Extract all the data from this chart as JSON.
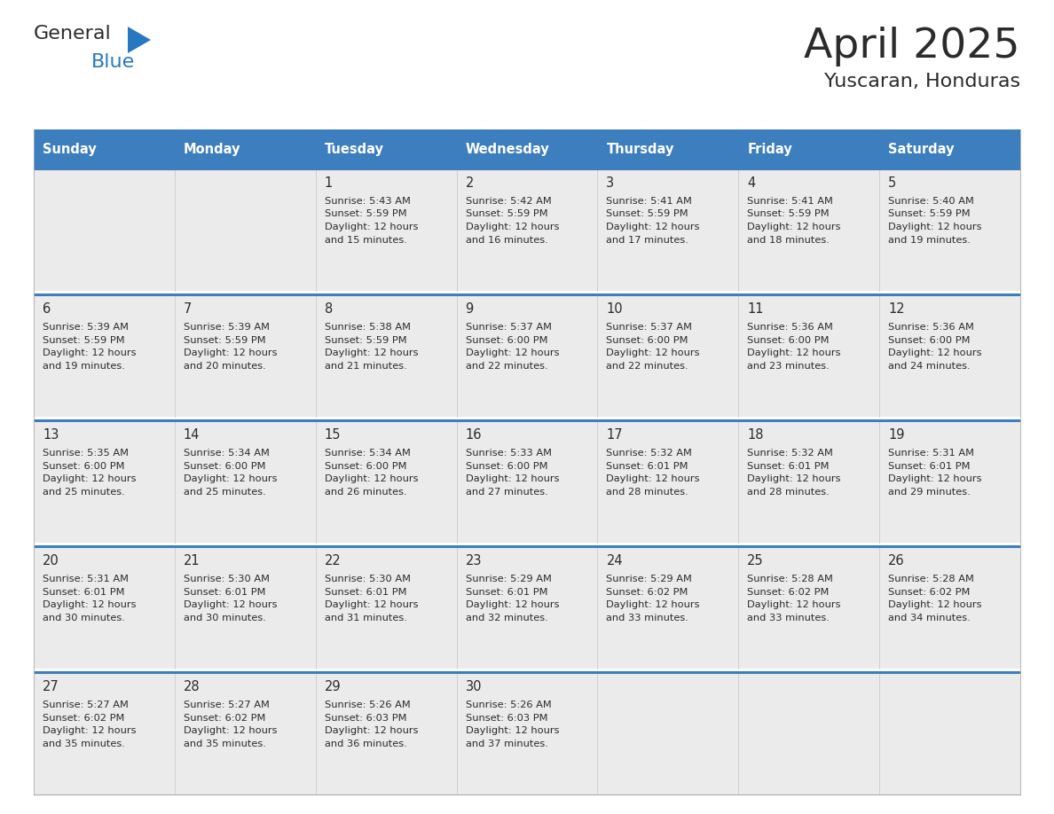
{
  "title": "April 2025",
  "subtitle": "Yuscaran, Honduras",
  "days_of_week": [
    "Sunday",
    "Monday",
    "Tuesday",
    "Wednesday",
    "Thursday",
    "Friday",
    "Saturday"
  ],
  "header_bg": "#3d7ebf",
  "header_text": "#ffffff",
  "cell_bg": "#ebebeb",
  "row_divider_color": "#3d7ebf",
  "title_color": "#2b2b2b",
  "subtitle_color": "#2b2b2b",
  "text_color": "#2b2b2b",
  "calendar_data": [
    [
      {
        "day": null,
        "sunrise": null,
        "sunset": null,
        "daylight_hours": null,
        "daylight_minutes": null
      },
      {
        "day": null,
        "sunrise": null,
        "sunset": null,
        "daylight_hours": null,
        "daylight_minutes": null
      },
      {
        "day": 1,
        "sunrise": "5:43 AM",
        "sunset": "5:59 PM",
        "daylight_hours": 12,
        "daylight_minutes": 15
      },
      {
        "day": 2,
        "sunrise": "5:42 AM",
        "sunset": "5:59 PM",
        "daylight_hours": 12,
        "daylight_minutes": 16
      },
      {
        "day": 3,
        "sunrise": "5:41 AM",
        "sunset": "5:59 PM",
        "daylight_hours": 12,
        "daylight_minutes": 17
      },
      {
        "day": 4,
        "sunrise": "5:41 AM",
        "sunset": "5:59 PM",
        "daylight_hours": 12,
        "daylight_minutes": 18
      },
      {
        "day": 5,
        "sunrise": "5:40 AM",
        "sunset": "5:59 PM",
        "daylight_hours": 12,
        "daylight_minutes": 19
      }
    ],
    [
      {
        "day": 6,
        "sunrise": "5:39 AM",
        "sunset": "5:59 PM",
        "daylight_hours": 12,
        "daylight_minutes": 19
      },
      {
        "day": 7,
        "sunrise": "5:39 AM",
        "sunset": "5:59 PM",
        "daylight_hours": 12,
        "daylight_minutes": 20
      },
      {
        "day": 8,
        "sunrise": "5:38 AM",
        "sunset": "5:59 PM",
        "daylight_hours": 12,
        "daylight_minutes": 21
      },
      {
        "day": 9,
        "sunrise": "5:37 AM",
        "sunset": "6:00 PM",
        "daylight_hours": 12,
        "daylight_minutes": 22
      },
      {
        "day": 10,
        "sunrise": "5:37 AM",
        "sunset": "6:00 PM",
        "daylight_hours": 12,
        "daylight_minutes": 22
      },
      {
        "day": 11,
        "sunrise": "5:36 AM",
        "sunset": "6:00 PM",
        "daylight_hours": 12,
        "daylight_minutes": 23
      },
      {
        "day": 12,
        "sunrise": "5:36 AM",
        "sunset": "6:00 PM",
        "daylight_hours": 12,
        "daylight_minutes": 24
      }
    ],
    [
      {
        "day": 13,
        "sunrise": "5:35 AM",
        "sunset": "6:00 PM",
        "daylight_hours": 12,
        "daylight_minutes": 25
      },
      {
        "day": 14,
        "sunrise": "5:34 AM",
        "sunset": "6:00 PM",
        "daylight_hours": 12,
        "daylight_minutes": 25
      },
      {
        "day": 15,
        "sunrise": "5:34 AM",
        "sunset": "6:00 PM",
        "daylight_hours": 12,
        "daylight_minutes": 26
      },
      {
        "day": 16,
        "sunrise": "5:33 AM",
        "sunset": "6:00 PM",
        "daylight_hours": 12,
        "daylight_minutes": 27
      },
      {
        "day": 17,
        "sunrise": "5:32 AM",
        "sunset": "6:01 PM",
        "daylight_hours": 12,
        "daylight_minutes": 28
      },
      {
        "day": 18,
        "sunrise": "5:32 AM",
        "sunset": "6:01 PM",
        "daylight_hours": 12,
        "daylight_minutes": 28
      },
      {
        "day": 19,
        "sunrise": "5:31 AM",
        "sunset": "6:01 PM",
        "daylight_hours": 12,
        "daylight_minutes": 29
      }
    ],
    [
      {
        "day": 20,
        "sunrise": "5:31 AM",
        "sunset": "6:01 PM",
        "daylight_hours": 12,
        "daylight_minutes": 30
      },
      {
        "day": 21,
        "sunrise": "5:30 AM",
        "sunset": "6:01 PM",
        "daylight_hours": 12,
        "daylight_minutes": 30
      },
      {
        "day": 22,
        "sunrise": "5:30 AM",
        "sunset": "6:01 PM",
        "daylight_hours": 12,
        "daylight_minutes": 31
      },
      {
        "day": 23,
        "sunrise": "5:29 AM",
        "sunset": "6:01 PM",
        "daylight_hours": 12,
        "daylight_minutes": 32
      },
      {
        "day": 24,
        "sunrise": "5:29 AM",
        "sunset": "6:02 PM",
        "daylight_hours": 12,
        "daylight_minutes": 33
      },
      {
        "day": 25,
        "sunrise": "5:28 AM",
        "sunset": "6:02 PM",
        "daylight_hours": 12,
        "daylight_minutes": 33
      },
      {
        "day": 26,
        "sunrise": "5:28 AM",
        "sunset": "6:02 PM",
        "daylight_hours": 12,
        "daylight_minutes": 34
      }
    ],
    [
      {
        "day": 27,
        "sunrise": "5:27 AM",
        "sunset": "6:02 PM",
        "daylight_hours": 12,
        "daylight_minutes": 35
      },
      {
        "day": 28,
        "sunrise": "5:27 AM",
        "sunset": "6:02 PM",
        "daylight_hours": 12,
        "daylight_minutes": 35
      },
      {
        "day": 29,
        "sunrise": "5:26 AM",
        "sunset": "6:03 PM",
        "daylight_hours": 12,
        "daylight_minutes": 36
      },
      {
        "day": 30,
        "sunrise": "5:26 AM",
        "sunset": "6:03 PM",
        "daylight_hours": 12,
        "daylight_minutes": 37
      },
      {
        "day": null,
        "sunrise": null,
        "sunset": null,
        "daylight_hours": null,
        "daylight_minutes": null
      },
      {
        "day": null,
        "sunrise": null,
        "sunset": null,
        "daylight_hours": null,
        "daylight_minutes": null
      },
      {
        "day": null,
        "sunrise": null,
        "sunset": null,
        "daylight_hours": null,
        "daylight_minutes": null
      }
    ]
  ],
  "logo_text_general": "General",
  "logo_text_blue": "Blue",
  "logo_color_general": "#2b2b2b",
  "logo_color_blue": "#2878c0",
  "logo_triangle_color": "#2878c0",
  "fig_width": 11.88,
  "fig_height": 9.18
}
